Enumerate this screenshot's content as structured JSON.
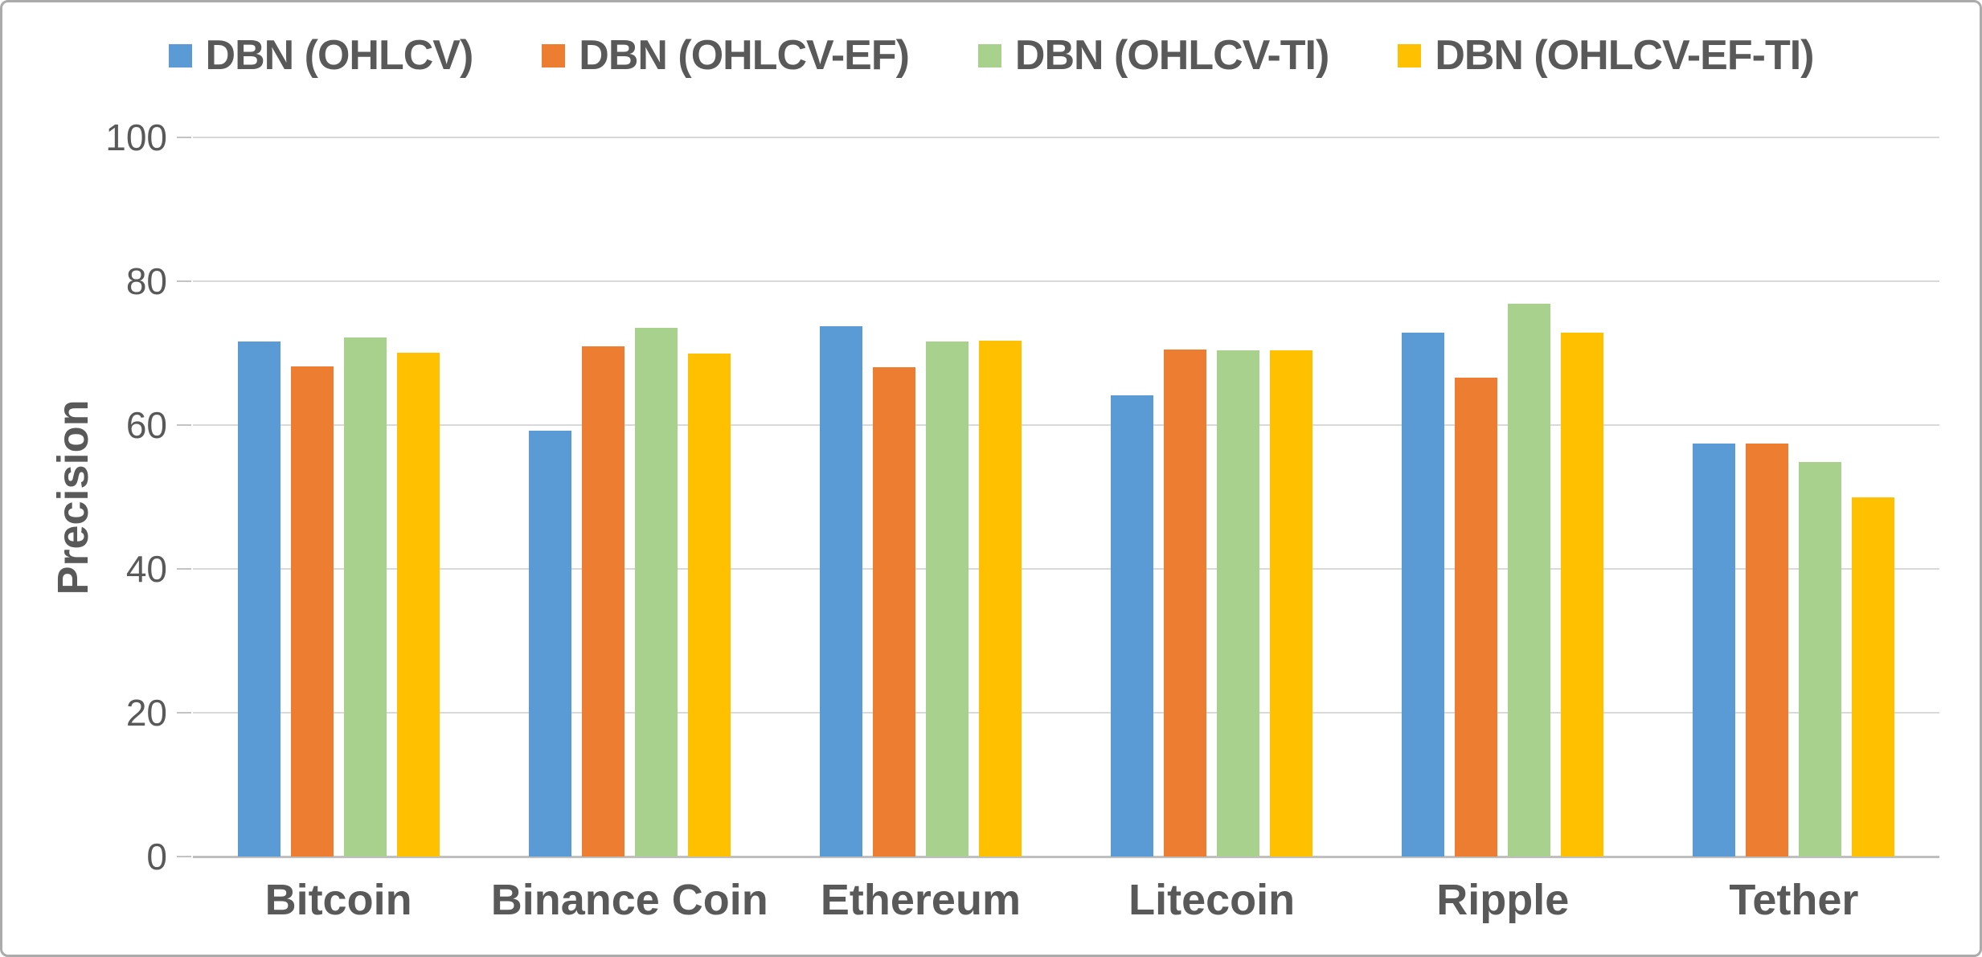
{
  "page": {
    "background": "#ffffff",
    "frame_border_color": "#ababab"
  },
  "legend": {
    "position": "top",
    "items": [
      {
        "label": "DBN (OHLCV)",
        "color": "#5B9BD5"
      },
      {
        "label": "DBN (OHLCV-EF)",
        "color": "#ED7D31"
      },
      {
        "label": "DBN (OHLCV-TI)",
        "color": "#A9D18E"
      },
      {
        "label": "DBN (OHLCV-EF-TI)",
        "color": "#FFC000"
      }
    ]
  },
  "chart_data": {
    "type": "bar",
    "title": "",
    "xlabel": "",
    "ylabel": "Precision",
    "ylim": [
      0,
      100
    ],
    "y_ticks": [
      0,
      20,
      40,
      60,
      80,
      100
    ],
    "grid": true,
    "legend_position": "top",
    "categories": [
      "Bitcoin",
      "Binance Coin",
      "Ethereum",
      "Litecoin",
      "Ripple",
      "Tether"
    ],
    "series": [
      {
        "name": "DBN (OHLCV)",
        "color": "#5B9BD5",
        "values": [
          71.6,
          59.2,
          73.8,
          64.1,
          72.8,
          57.4
        ]
      },
      {
        "name": "DBN (OHLCV-EF)",
        "color": "#ED7D31",
        "values": [
          68.2,
          70.9,
          68.0,
          70.5,
          66.6,
          57.4
        ]
      },
      {
        "name": "DBN (OHLCV-TI)",
        "color": "#A9D18E",
        "values": [
          72.2,
          73.5,
          71.6,
          70.4,
          76.9,
          54.9
        ]
      },
      {
        "name": "DBN (OHLCV-EF-TI)",
        "color": "#FFC000",
        "values": [
          70.1,
          69.9,
          71.7,
          70.4,
          72.8,
          50.0
        ]
      }
    ],
    "colors": {
      "text": "#595959",
      "gridline": "#d9d9d9",
      "axis_line": "#bfbfbf"
    }
  }
}
